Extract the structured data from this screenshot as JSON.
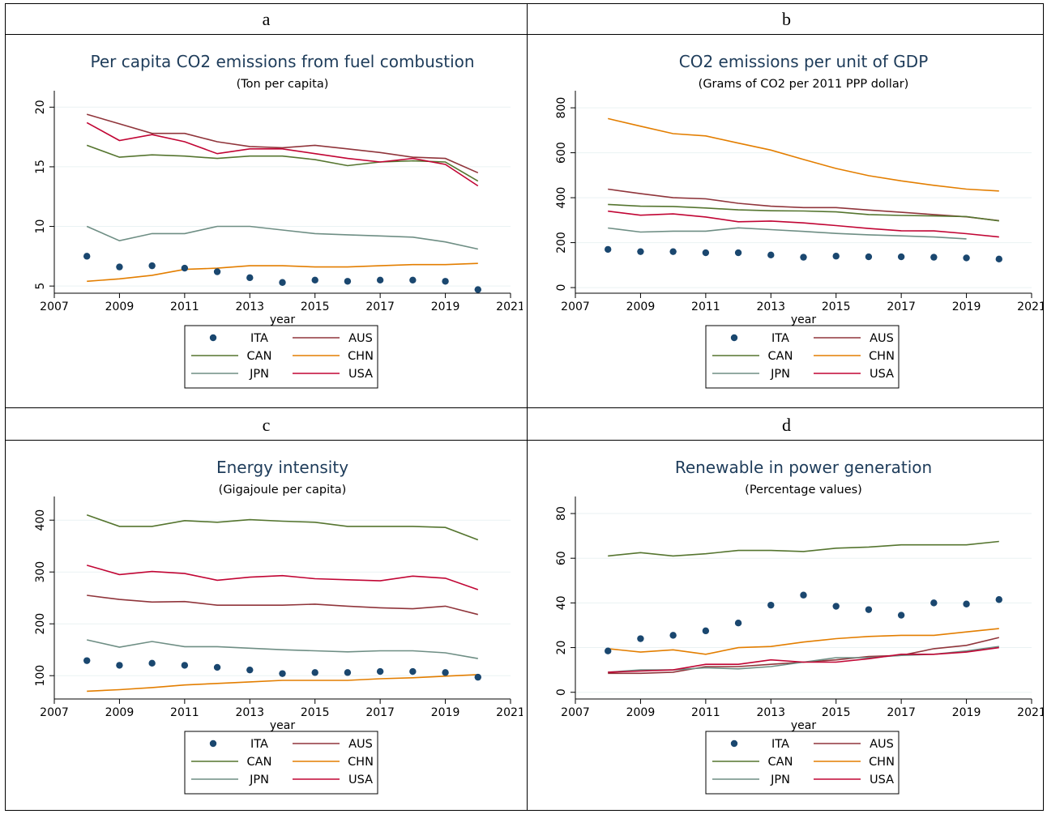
{
  "panels": [
    "a",
    "b",
    "c",
    "d"
  ],
  "legend_items": [
    {
      "code": "ITA",
      "color": "#1a476f",
      "kind": "marker"
    },
    {
      "code": "AUS",
      "color": "#90353b",
      "kind": "line"
    },
    {
      "code": "CAN",
      "color": "#55752f",
      "kind": "line"
    },
    {
      "code": "CHN",
      "color": "#e37e00",
      "kind": "line"
    },
    {
      "code": "JPN",
      "color": "#6e8e84",
      "kind": "line"
    },
    {
      "code": "USA",
      "color": "#c10534",
      "kind": "line"
    }
  ],
  "chart_data": [
    {
      "type": "line",
      "title": "Per capita CO2 emissions from fuel combustion",
      "subtitle": "(Ton per capita)",
      "xlabel": "year",
      "ylabel": "",
      "xlim": [
        2007,
        2021
      ],
      "ylim": [
        4.4,
        20.7
      ],
      "xticks": [
        2007,
        2009,
        2011,
        2013,
        2015,
        2017,
        2019,
        2021
      ],
      "yticks": [
        5,
        10,
        15,
        20
      ],
      "x": [
        2008,
        2009,
        2010,
        2011,
        2012,
        2013,
        2014,
        2015,
        2016,
        2017,
        2018,
        2019,
        2020
      ],
      "series": [
        {
          "name": "AUS",
          "values": [
            19.4,
            18.6,
            17.8,
            17.8,
            17.1,
            16.7,
            16.6,
            16.8,
            16.5,
            16.2,
            15.8,
            15.7,
            14.5
          ]
        },
        {
          "name": "CAN",
          "values": [
            16.8,
            15.8,
            16.0,
            15.9,
            15.7,
            15.9,
            15.9,
            15.6,
            15.1,
            15.4,
            15.5,
            15.4,
            13.8
          ]
        },
        {
          "name": "CHN",
          "values": [
            5.4,
            5.6,
            5.9,
            6.4,
            6.5,
            6.7,
            6.7,
            6.6,
            6.6,
            6.7,
            6.8,
            6.8,
            6.9
          ]
        },
        {
          "name": "JPN",
          "values": [
            10.0,
            8.8,
            9.4,
            9.4,
            10.0,
            10.0,
            9.7,
            9.4,
            9.3,
            9.2,
            9.1,
            8.7,
            8.1
          ]
        },
        {
          "name": "USA",
          "values": [
            18.7,
            17.2,
            17.7,
            17.1,
            16.1,
            16.5,
            16.5,
            16.1,
            15.7,
            15.4,
            15.7,
            15.2,
            13.4
          ]
        },
        {
          "name": "ITA",
          "values": [
            7.5,
            6.6,
            6.7,
            6.5,
            6.2,
            5.7,
            5.3,
            5.5,
            5.4,
            5.5,
            5.5,
            5.4,
            4.7
          ]
        }
      ]
    },
    {
      "type": "line",
      "title": "CO2 emissions per unit of GDP",
      "subtitle": "(Grams of CO2 per 2011 PPP dollar)",
      "xlabel": "year",
      "ylabel": "",
      "xlim": [
        2007,
        2021
      ],
      "ylim": [
        -25,
        840
      ],
      "xticks": [
        2007,
        2009,
        2011,
        2013,
        2015,
        2017,
        2019,
        2021
      ],
      "yticks": [
        0,
        200,
        400,
        600,
        800
      ],
      "x": [
        2008,
        2009,
        2010,
        2011,
        2012,
        2013,
        2014,
        2015,
        2016,
        2017,
        2018,
        2019,
        2020
      ],
      "series": [
        {
          "name": "AUS",
          "values": [
            438,
            418,
            400,
            395,
            375,
            362,
            356,
            356,
            345,
            335,
            325,
            315,
            298
          ]
        },
        {
          "name": "CAN",
          "values": [
            370,
            362,
            361,
            354,
            346,
            342,
            341,
            337,
            325,
            321,
            319,
            316,
            297
          ]
        },
        {
          "name": "CHN",
          "values": [
            752,
            718,
            685,
            675,
            643,
            612,
            570,
            530,
            498,
            475,
            455,
            438,
            430
          ]
        },
        {
          "name": "JPN",
          "values": [
            265,
            247,
            251,
            251,
            266,
            258,
            250,
            241,
            235,
            230,
            225,
            217,
            null
          ]
        },
        {
          "name": "USA",
          "values": [
            340,
            322,
            328,
            314,
            293,
            296,
            288,
            276,
            263,
            253,
            252,
            240,
            225
          ]
        },
        {
          "name": "ITA",
          "values": [
            170,
            160,
            160,
            155,
            155,
            145,
            135,
            140,
            137,
            137,
            135,
            132,
            127
          ]
        }
      ]
    },
    {
      "type": "line",
      "title": "Energy intensity",
      "subtitle": "(Gigajoule per capita)",
      "xlabel": "year",
      "ylabel": "",
      "xlim": [
        2007,
        2021
      ],
      "ylim": [
        55,
        430
      ],
      "xticks": [
        2007,
        2009,
        2011,
        2013,
        2015,
        2017,
        2019,
        2021
      ],
      "yticks": [
        100,
        200,
        300,
        400
      ],
      "x": [
        2008,
        2009,
        2010,
        2011,
        2012,
        2013,
        2014,
        2015,
        2016,
        2017,
        2018,
        2019,
        2020
      ],
      "series": [
        {
          "name": "AUS",
          "values": [
            255,
            247,
            242,
            243,
            236,
            236,
            236,
            238,
            234,
            231,
            229,
            234,
            218
          ]
        },
        {
          "name": "CAN",
          "values": [
            410,
            388,
            388,
            399,
            396,
            401,
            398,
            396,
            388,
            388,
            388,
            386,
            362
          ]
        },
        {
          "name": "CHN",
          "values": [
            70,
            73,
            77,
            82,
            85,
            88,
            91,
            91,
            91,
            94,
            96,
            99,
            102
          ]
        },
        {
          "name": "JPN",
          "values": [
            169,
            155,
            166,
            156,
            156,
            153,
            150,
            148,
            146,
            148,
            148,
            144,
            133
          ]
        },
        {
          "name": "USA",
          "values": [
            313,
            295,
            301,
            297,
            284,
            290,
            293,
            287,
            285,
            283,
            292,
            288,
            266
          ]
        },
        {
          "name": "ITA",
          "values": [
            129,
            120,
            124,
            120,
            116,
            111,
            104,
            106,
            106,
            108,
            108,
            106,
            97
          ]
        }
      ]
    },
    {
      "type": "line",
      "title": "Renewable in power generation",
      "subtitle": "(Percentage values)",
      "xlabel": "year",
      "ylabel": "",
      "xlim": [
        2007,
        2021
      ],
      "ylim": [
        -3,
        84
      ],
      "xticks": [
        2007,
        2009,
        2011,
        2013,
        2015,
        2017,
        2019,
        2021
      ],
      "yticks": [
        0,
        20,
        40,
        60,
        80
      ],
      "x": [
        2008,
        2009,
        2010,
        2011,
        2012,
        2013,
        2014,
        2015,
        2016,
        2017,
        2018,
        2019,
        2020
      ],
      "series": [
        {
          "name": "AUS",
          "values": [
            8.5,
            8.5,
            9.0,
            11.5,
            11.5,
            12.5,
            13.5,
            14.5,
            16.0,
            16.5,
            19.5,
            21.0,
            24.5
          ]
        },
        {
          "name": "CAN",
          "values": [
            61.0,
            62.5,
            61.0,
            62.0,
            63.5,
            63.5,
            63.0,
            64.5,
            65.0,
            66.0,
            66.0,
            66.0,
            67.5
          ]
        },
        {
          "name": "CHN",
          "values": [
            19.5,
            18.0,
            19.0,
            17.0,
            20.0,
            20.5,
            22.5,
            24.0,
            25.0,
            25.5,
            25.5,
            27.0,
            28.5
          ]
        },
        {
          "name": "JPN",
          "values": [
            9.0,
            10.0,
            10.0,
            11.0,
            10.5,
            11.5,
            13.5,
            15.5,
            15.5,
            16.5,
            17.0,
            18.5,
            20.5
          ]
        },
        {
          "name": "USA",
          "values": [
            9.0,
            9.5,
            10.0,
            12.5,
            12.5,
            14.5,
            13.5,
            13.5,
            15.0,
            17.0,
            17.0,
            18.0,
            20.0
          ]
        },
        {
          "name": "ITA",
          "values": [
            18.5,
            24.0,
            25.5,
            27.5,
            31.0,
            39.0,
            43.5,
            38.5,
            37.0,
            34.5,
            40.0,
            39.5,
            41.5
          ]
        }
      ]
    }
  ]
}
